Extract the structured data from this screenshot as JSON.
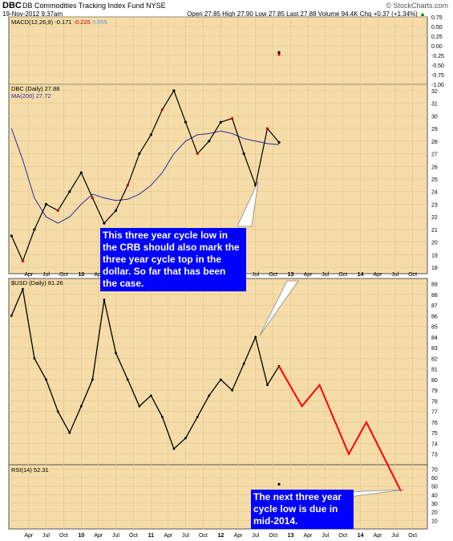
{
  "header": {
    "symbol": "DBC",
    "fund_name": "DB Commodities Tracking Index Fund",
    "exchange": "NYSE",
    "date_time": "19-Nov-2012 9:37am",
    "brand": "© StockCharts.com",
    "quote": "Open 27.85  High 27.90  Low 27.85  Last 27.88  Volume 94.4K  Chg +0.37 (+1.34%)",
    "quote_arrow": "▲"
  },
  "colors": {
    "panel_bg": "#f5dca8",
    "panel_bg_light": "#fdf4dc",
    "price_up": "#000000",
    "price_down": "#cc0000",
    "ma_line": "#2a2aa0",
    "projection": "#ff0000",
    "callout_bg": "#0000ff"
  },
  "macd_panel": {
    "label_prefix": "MACD(12,26,9)",
    "macd_value": "-0.171",
    "signal_value": "-0.226",
    "hist_value": "0.055",
    "y_ticks": [
      "0.75",
      "0.50",
      "0.25",
      "0.00",
      "-0.25",
      "-0.50",
      "-0.75",
      "-1.00"
    ]
  },
  "price_panel": {
    "label": "DBC (Daily) 27.88",
    "ma_label": "MA(200) 27.72",
    "y_ticks": [
      "32",
      "31",
      "30",
      "29",
      "28",
      "27",
      "26",
      "25",
      "24",
      "23",
      "22",
      "21",
      "20",
      "19",
      "18"
    ]
  },
  "usd_panel": {
    "label": "$USD (Daily) 81.26",
    "y_ticks": [
      "89",
      "88",
      "87",
      "86",
      "85",
      "84",
      "83",
      "82",
      "81",
      "80",
      "79",
      "78",
      "77",
      "76",
      "75",
      "74",
      "73"
    ]
  },
  "rsi_panel": {
    "label": "RSI(14) 52.31",
    "y_ticks": [
      "70",
      "60",
      "50",
      "40",
      "30",
      "20",
      "10"
    ]
  },
  "x_axis": {
    "labels": [
      "Apr",
      "Jul",
      "Oct",
      "10",
      "Apr",
      "Jul",
      "Oct",
      "11",
      "Apr",
      "Jul",
      "Oct",
      "12",
      "Apr",
      "Jul",
      "Oct",
      "13",
      "Apr",
      "Jul",
      "Oct",
      "14",
      "Apr",
      "Jul",
      "Oct"
    ]
  },
  "callouts": {
    "crb_text": "This three year cycle low in\nthe CRB should also mark the\nthree year cycle top in the\ndollar. So far that has been\nthe case.",
    "next_low_text": "The next three year\ncycle low is due in\nmid-2014."
  },
  "chart_data": [
    {
      "type": "line",
      "title": "DBC (Daily) 27.88",
      "ylim": [
        18,
        32
      ],
      "x": [
        "2009-01",
        "2009-03",
        "2009-05",
        "2009-07",
        "2009-09",
        "2009-11",
        "2010-01",
        "2010-03",
        "2010-05",
        "2010-07",
        "2010-09",
        "2010-11",
        "2011-01",
        "2011-03",
        "2011-05",
        "2011-07",
        "2011-09",
        "2011-11",
        "2012-01",
        "2012-03",
        "2012-05",
        "2012-07",
        "2012-09",
        "2012-11"
      ],
      "series": [
        {
          "name": "DBC (Daily)",
          "values": [
            20.5,
            18.5,
            21.0,
            23.0,
            22.5,
            24.0,
            25.5,
            23.5,
            21.5,
            22.5,
            24.5,
            27.0,
            28.5,
            30.5,
            32.0,
            29.5,
            27.0,
            28.0,
            29.5,
            29.8,
            27.0,
            24.5,
            29.0,
            27.9
          ]
        },
        {
          "name": "MA(200)",
          "values": [
            29.0,
            26.5,
            23.5,
            22.0,
            21.5,
            22.0,
            23.0,
            23.8,
            23.5,
            23.3,
            23.4,
            23.8,
            24.5,
            25.5,
            27.0,
            28.0,
            28.5,
            28.6,
            28.8,
            28.6,
            28.2,
            28.0,
            27.8,
            27.72
          ]
        }
      ]
    },
    {
      "type": "line",
      "title": "$USD (Daily) 81.26",
      "ylim": [
        73,
        89
      ],
      "x": [
        "2009-01",
        "2009-03",
        "2009-05",
        "2009-07",
        "2009-09",
        "2009-11",
        "2010-01",
        "2010-03",
        "2010-05",
        "2010-07",
        "2010-09",
        "2010-11",
        "2011-01",
        "2011-03",
        "2011-05",
        "2011-07",
        "2011-09",
        "2011-11",
        "2012-01",
        "2012-03",
        "2012-05",
        "2012-07",
        "2012-09",
        "2012-11"
      ],
      "series": [
        {
          "name": "$USD (Daily)",
          "values": [
            86.0,
            88.5,
            82.0,
            80.0,
            77.0,
            75.0,
            77.5,
            80.0,
            87.5,
            82.5,
            80.0,
            77.5,
            78.5,
            76.5,
            73.5,
            74.5,
            76.5,
            78.5,
            80.0,
            79.0,
            81.5,
            84.0,
            79.5,
            81.26
          ]
        },
        {
          "name": "projection",
          "values_by_date": [
            [
              "2012-11",
              81.26
            ],
            [
              "2013-03",
              77.5
            ],
            [
              "2013-06",
              79.5
            ],
            [
              "2013-11",
              73.0
            ],
            [
              "2014-02",
              76.0
            ],
            [
              "2014-08",
              68.0
            ]
          ]
        }
      ]
    },
    {
      "type": "line",
      "title": "MACD(12,26,9)",
      "ylim": [
        -1.0,
        0.75
      ],
      "x": [
        "2012-11"
      ],
      "series": [
        {
          "name": "MACD",
          "values": [
            -0.171
          ]
        },
        {
          "name": "Signal",
          "values": [
            -0.226
          ]
        },
        {
          "name": "Histogram",
          "values": [
            0.055
          ]
        }
      ]
    },
    {
      "type": "line",
      "title": "RSI(14)",
      "ylim": [
        10,
        70
      ],
      "x": [
        "2012-11"
      ],
      "series": [
        {
          "name": "RSI(14)",
          "values": [
            52.31
          ]
        }
      ]
    }
  ]
}
